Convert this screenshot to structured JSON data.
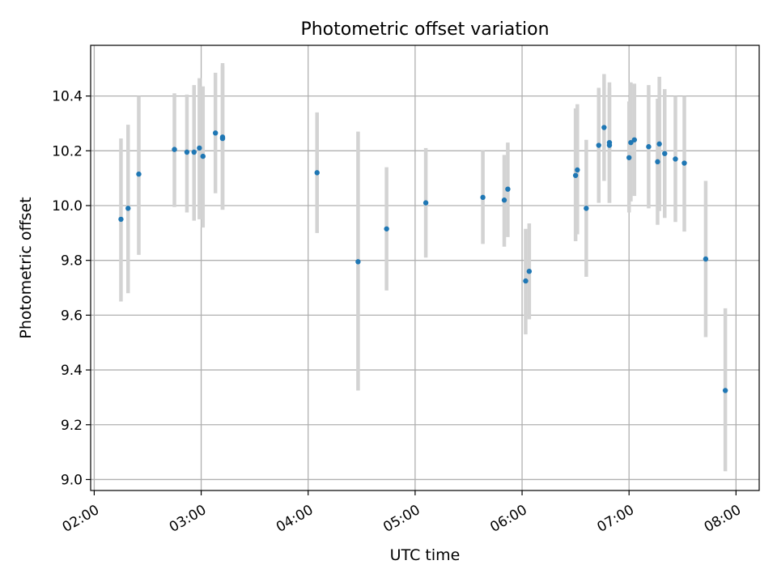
{
  "chart_data": {
    "type": "scatter",
    "title": "Photometric offset variation",
    "xlabel": "UTC time",
    "ylabel": "Photometric offset",
    "x_unit": "UTC time (HH:MM)",
    "xlim": [
      "01:58",
      "08:13"
    ],
    "ylim": [
      8.96,
      10.585
    ],
    "x_ticks": [
      "02:00",
      "03:00",
      "04:00",
      "05:00",
      "06:00",
      "07:00",
      "08:00"
    ],
    "y_ticks": [
      9.0,
      9.2,
      9.4,
      9.6,
      9.8,
      10.0,
      10.2,
      10.4
    ],
    "y_tick_labels": [
      "9.0",
      "9.2",
      "9.4",
      "9.6",
      "9.8",
      "10.0",
      "10.2",
      "10.4"
    ],
    "grid": true,
    "legend": "none",
    "colors": {
      "points": "#1f77b4",
      "error_bars": "#d3d3d3",
      "grid": "#b0b0b0"
    },
    "points": [
      {
        "t": "02:15",
        "y": 9.95,
        "ylo": 9.65,
        "yhi": 10.245
      },
      {
        "t": "02:19",
        "y": 9.99,
        "ylo": 9.68,
        "yhi": 10.295
      },
      {
        "t": "02:25",
        "y": 10.115,
        "ylo": 9.82,
        "yhi": 10.4
      },
      {
        "t": "02:45",
        "y": 10.205,
        "ylo": 9.995,
        "yhi": 10.41
      },
      {
        "t": "02:52",
        "y": 10.195,
        "ylo": 9.975,
        "yhi": 10.405
      },
      {
        "t": "02:56",
        "y": 10.195,
        "ylo": 9.945,
        "yhi": 10.44
      },
      {
        "t": "02:59",
        "y": 10.21,
        "ylo": 9.95,
        "yhi": 10.465
      },
      {
        "t": "03:01",
        "y": 10.18,
        "ylo": 9.92,
        "yhi": 10.435
      },
      {
        "t": "03:08",
        "y": 10.265,
        "ylo": 10.045,
        "yhi": 10.485
      },
      {
        "t": "03:12",
        "y": 10.25,
        "ylo": 9.985,
        "yhi": 10.52
      },
      {
        "t": "03:12",
        "y": 10.245,
        "ylo": 9.985,
        "yhi": 10.51
      },
      {
        "t": "04:05",
        "y": 10.12,
        "ylo": 9.9,
        "yhi": 10.34
      },
      {
        "t": "04:28",
        "y": 9.795,
        "ylo": 9.325,
        "yhi": 10.27
      },
      {
        "t": "04:44",
        "y": 9.915,
        "ylo": 9.69,
        "yhi": 10.14
      },
      {
        "t": "05:06",
        "y": 10.01,
        "ylo": 9.81,
        "yhi": 10.21
      },
      {
        "t": "05:38",
        "y": 10.03,
        "ylo": 9.86,
        "yhi": 10.2
      },
      {
        "t": "05:50",
        "y": 10.02,
        "ylo": 9.85,
        "yhi": 10.185
      },
      {
        "t": "05:52",
        "y": 10.06,
        "ylo": 9.885,
        "yhi": 10.23
      },
      {
        "t": "06:02",
        "y": 9.725,
        "ylo": 9.53,
        "yhi": 9.915
      },
      {
        "t": "06:04",
        "y": 9.76,
        "ylo": 9.585,
        "yhi": 9.935
      },
      {
        "t": "06:30",
        "y": 10.11,
        "ylo": 9.87,
        "yhi": 10.355
      },
      {
        "t": "06:31",
        "y": 10.13,
        "ylo": 9.895,
        "yhi": 10.37
      },
      {
        "t": "06:36",
        "y": 9.99,
        "ylo": 9.74,
        "yhi": 10.24
      },
      {
        "t": "06:43",
        "y": 10.22,
        "ylo": 10.01,
        "yhi": 10.43
      },
      {
        "t": "06:46",
        "y": 10.285,
        "ylo": 10.09,
        "yhi": 10.48
      },
      {
        "t": "06:49",
        "y": 10.23,
        "ylo": 10.01,
        "yhi": 10.45
      },
      {
        "t": "06:49",
        "y": 10.22,
        "ylo": 10.01,
        "yhi": 10.43
      },
      {
        "t": "07:00",
        "y": 10.175,
        "ylo": 9.975,
        "yhi": 10.38
      },
      {
        "t": "07:01",
        "y": 10.23,
        "ylo": 10.015,
        "yhi": 10.45
      },
      {
        "t": "07:03",
        "y": 10.24,
        "ylo": 10.035,
        "yhi": 10.445
      },
      {
        "t": "07:11",
        "y": 10.215,
        "ylo": 9.99,
        "yhi": 10.44
      },
      {
        "t": "07:16",
        "y": 10.16,
        "ylo": 9.93,
        "yhi": 10.39
      },
      {
        "t": "07:17",
        "y": 10.225,
        "ylo": 9.98,
        "yhi": 10.47
      },
      {
        "t": "07:20",
        "y": 10.19,
        "ylo": 9.955,
        "yhi": 10.425
      },
      {
        "t": "07:26",
        "y": 10.17,
        "ylo": 9.94,
        "yhi": 10.4
      },
      {
        "t": "07:31",
        "y": 10.155,
        "ylo": 9.905,
        "yhi": 10.4
      },
      {
        "t": "07:43",
        "y": 9.805,
        "ylo": 9.52,
        "yhi": 10.09
      },
      {
        "t": "07:54",
        "y": 9.325,
        "ylo": 9.03,
        "yhi": 9.625
      }
    ]
  }
}
